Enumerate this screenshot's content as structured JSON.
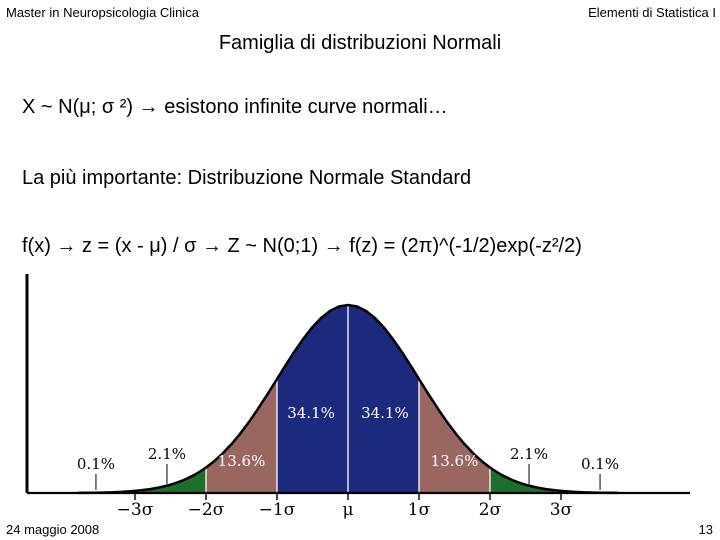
{
  "header": {
    "left": "Master in Neuropsicologia Clinica",
    "right": "Elementi di Statistica I"
  },
  "slide": {
    "title": "Famiglia di distribuzioni Normali",
    "line1": "X ~ N(μ; σ ²)  →   esistono infinite curve normali…",
    "line2": "La più importante: Distribuzione Normale Standard",
    "line3": "f(x) → z = (x - μ) / σ → Z ~ N(0;1) → f(z) = (2π)^(-1/2)exp(-z²/2)"
  },
  "footer": {
    "date": "24 maggio 2008",
    "page": "13"
  },
  "chart_data": {
    "type": "area",
    "description": "Normal distribution curve with shaded standard-deviation bands",
    "x_ticks": [
      "−3σ",
      "−2σ",
      "−1σ",
      "μ",
      "1σ",
      "2σ",
      "3σ"
    ],
    "x_tick_values": [
      -3,
      -2,
      -1,
      0,
      1,
      2,
      3
    ],
    "xlim": [
      -3.8,
      3.8
    ],
    "bands": [
      {
        "from": -3,
        "to": -2,
        "percent": "2.1%",
        "color": "#1e6e2c"
      },
      {
        "from": -2,
        "to": -1,
        "percent": "13.6%",
        "color": "#9a6660"
      },
      {
        "from": -1,
        "to": 0,
        "percent": "34.1%",
        "color": "#1c2a7e"
      },
      {
        "from": 0,
        "to": 1,
        "percent": "34.1%",
        "color": "#1c2a7e"
      },
      {
        "from": 1,
        "to": 2,
        "percent": "13.6%",
        "color": "#9a6660"
      },
      {
        "from": 2,
        "to": 3,
        "percent": "2.1%",
        "color": "#1e6e2c"
      }
    ],
    "tails": [
      {
        "side": "left",
        "percent": "0.1%"
      },
      {
        "side": "right",
        "percent": "0.1%"
      }
    ]
  }
}
